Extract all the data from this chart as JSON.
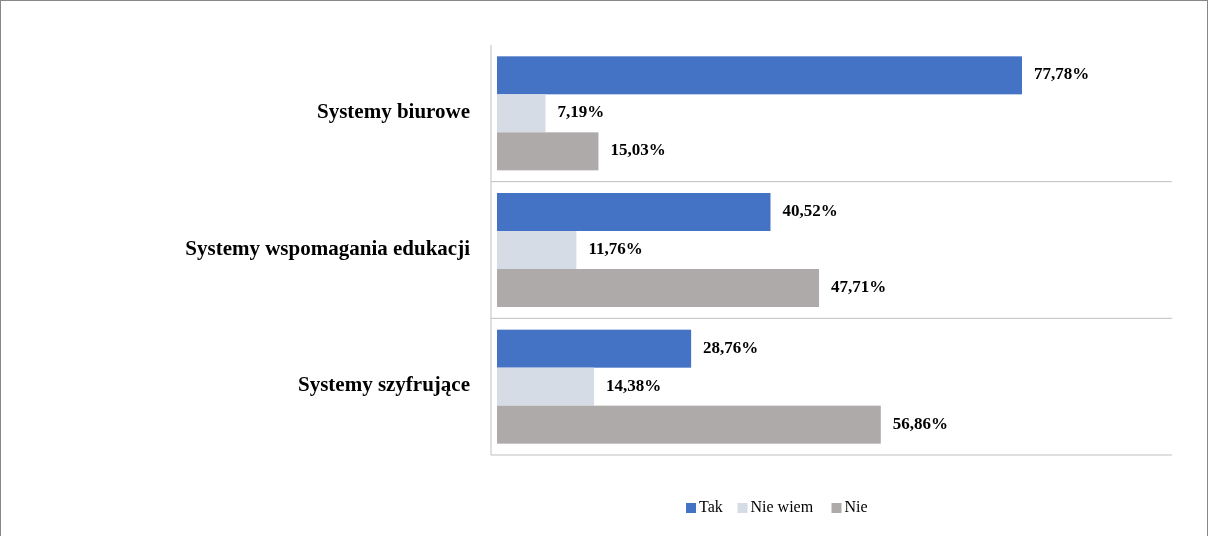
{
  "chart_data": {
    "type": "bar",
    "orientation": "horizontal",
    "categories": [
      "Systemy biurowe",
      "Systemy wspomagania edukacji",
      "Systemy szyfrujące"
    ],
    "series": [
      {
        "name": "Tak",
        "color": "#4472c4",
        "values": [
          77.78,
          40.52,
          28.76
        ],
        "value_labels": [
          "77,78%",
          "40,52%",
          "28,76%"
        ]
      },
      {
        "name": "Nie wiem",
        "color": "#d6dce5",
        "values": [
          7.19,
          11.76,
          14.38
        ],
        "value_labels": [
          "7,19%",
          "11,76%",
          "14,38%"
        ]
      },
      {
        "name": "Nie",
        "color": "#aeaaaa",
        "values": [
          15.03,
          47.71,
          56.86
        ],
        "value_labels": [
          "15,03%",
          "47,71%",
          "56,86%"
        ]
      }
    ],
    "legend": "bottom"
  }
}
